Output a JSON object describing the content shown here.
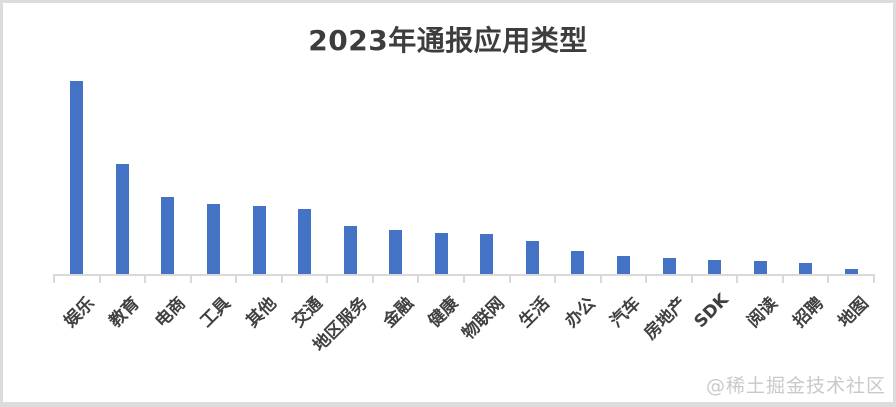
{
  "chart_data": {
    "type": "bar",
    "title": "2023年通报应用类型",
    "categories": [
      "娱乐",
      "教育",
      "电商",
      "工具",
      "其他",
      "交通",
      "地区服务",
      "金融",
      "健康",
      "物联网",
      "生活",
      "办公",
      "汽车",
      "房地产",
      "SDK",
      "阅读",
      "招聘",
      "地图"
    ],
    "values": [
      100,
      57,
      40,
      36.5,
      35.5,
      33.5,
      25,
      23,
      21.5,
      20.5,
      17,
      12,
      9.5,
      8.5,
      7.5,
      7,
      5.5,
      2.5
    ],
    "xlabel": "",
    "ylabel": "",
    "ylim": [
      0,
      100
    ],
    "grid": false,
    "legend": false,
    "bar_color": "#4472c4",
    "axis_color": "#d9d9d9",
    "label_color": "#404040",
    "title_color": "#3d3d3d"
  },
  "watermark": {
    "text": "@稀土掘金技术社区",
    "color": "#c9c9c9"
  }
}
